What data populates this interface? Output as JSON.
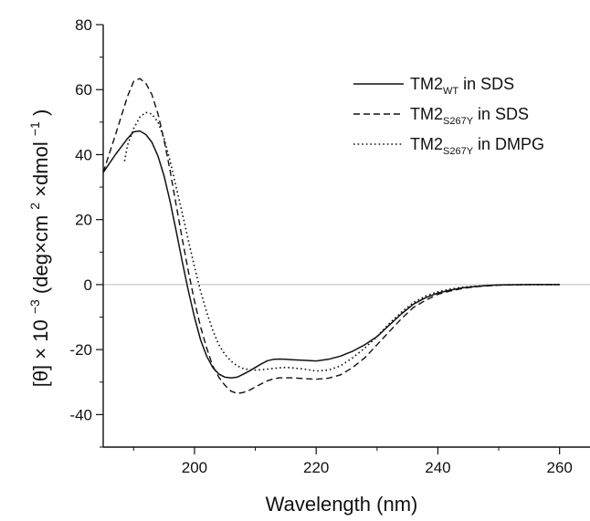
{
  "chart_data": {
    "type": "line",
    "xlabel": "Wavelength (nm)",
    "ylabel": {
      "prefix": "[θ] × 10",
      "exp1": "−3",
      "middle": " (deg×cm",
      "exp2": "2",
      "middle2": "×dmol",
      "exp3": "−1",
      "suffix": ")"
    },
    "xlim": [
      185,
      265
    ],
    "ylim": [
      -50,
      80
    ],
    "xticks": [
      200,
      220,
      240,
      260
    ],
    "yticks": [
      -40,
      -20,
      0,
      20,
      40,
      60,
      80
    ],
    "zero_line": true,
    "legend_position": "top-right",
    "series": [
      {
        "name": "TM2_WT in SDS",
        "name_main": "TM2",
        "name_sub": "WT",
        "name_suffix": " in SDS",
        "style": "solid",
        "x": [
          185,
          187,
          189,
          190,
          191,
          192,
          193,
          194,
          195,
          196,
          197,
          198,
          199,
          200,
          201,
          202,
          203,
          204,
          205,
          206,
          207,
          208,
          209,
          210,
          211,
          212,
          213,
          214,
          215,
          216,
          218,
          220,
          222,
          224,
          226,
          228,
          230,
          232,
          234,
          236,
          238,
          240,
          242,
          244,
          246,
          248,
          250,
          255,
          260
        ],
        "y": [
          34.5,
          40,
          45,
          47,
          47.3,
          46.2,
          43.8,
          39.5,
          33.5,
          25.5,
          16.5,
          7,
          -2,
          -10,
          -17,
          -22,
          -25.5,
          -27.5,
          -28.5,
          -28.7,
          -28.5,
          -27.6,
          -26.6,
          -25.5,
          -24.4,
          -23.4,
          -23,
          -22.9,
          -23,
          -23.1,
          -23.3,
          -23.5,
          -23,
          -22,
          -20.5,
          -18.5,
          -16,
          -12.5,
          -9,
          -6,
          -4,
          -2.6,
          -1.7,
          -1,
          -0.6,
          -0.3,
          -0.1,
          0,
          0
        ]
      },
      {
        "name": "TM2_S267Y in SDS",
        "name_main": "TM2",
        "name_sub": "S267Y",
        "name_suffix": " in SDS",
        "style": "dashed",
        "x": [
          185,
          187,
          189,
          190,
          191,
          192,
          193,
          194,
          195,
          196,
          197,
          198,
          199,
          200,
          201,
          202,
          203,
          204,
          205,
          206,
          207,
          208,
          209,
          210,
          211,
          212,
          213,
          214,
          216,
          218,
          220,
          222,
          224,
          226,
          228,
          230,
          232,
          234,
          236,
          238,
          240,
          242,
          244,
          246,
          248,
          250,
          255,
          260
        ],
        "y": [
          34.5,
          46,
          58,
          62.5,
          63.4,
          62,
          58.5,
          52.5,
          44.5,
          35,
          24.5,
          14,
          4,
          -5,
          -13,
          -19.5,
          -25,
          -28.5,
          -31,
          -32.8,
          -33.5,
          -33.2,
          -32.5,
          -31.5,
          -30.5,
          -29.6,
          -29,
          -28.7,
          -28.7,
          -28.9,
          -29.1,
          -28.8,
          -27.8,
          -25.5,
          -22.5,
          -18.5,
          -14.5,
          -10.5,
          -7,
          -4.8,
          -3,
          -2,
          -1.2,
          -0.7,
          -0.4,
          -0.2,
          0,
          0
        ]
      },
      {
        "name": "TM2_S267Y in DMPG",
        "name_main": "TM2",
        "name_sub": "S267Y",
        "name_suffix": " in DMPG",
        "style": "dotted",
        "x": [
          188.5,
          189,
          190,
          191,
          192,
          193,
          194,
          195,
          196,
          197,
          198,
          199,
          200,
          201,
          202,
          203,
          204,
          205,
          206,
          207,
          208,
          209,
          210,
          211,
          212,
          213,
          214,
          215,
          216,
          218,
          220,
          222,
          224,
          226,
          228,
          230,
          232,
          234,
          236,
          238,
          240,
          242,
          244,
          246,
          248,
          250,
          255,
          260
        ],
        "y": [
          38,
          43,
          48,
          51.5,
          53,
          52.5,
          50,
          45,
          38,
          30,
          22,
          13.5,
          5.5,
          -2,
          -8.5,
          -14,
          -18.5,
          -21.5,
          -23.5,
          -25,
          -25.8,
          -26.2,
          -26.3,
          -26.2,
          -26,
          -25.8,
          -25.6,
          -25.5,
          -25.6,
          -26,
          -26.6,
          -26.3,
          -25,
          -22.5,
          -19.5,
          -16,
          -12,
          -8.5,
          -5.5,
          -3.5,
          -2.2,
          -1.4,
          -0.8,
          -0.5,
          -0.3,
          -0.1,
          0,
          0
        ]
      }
    ]
  }
}
